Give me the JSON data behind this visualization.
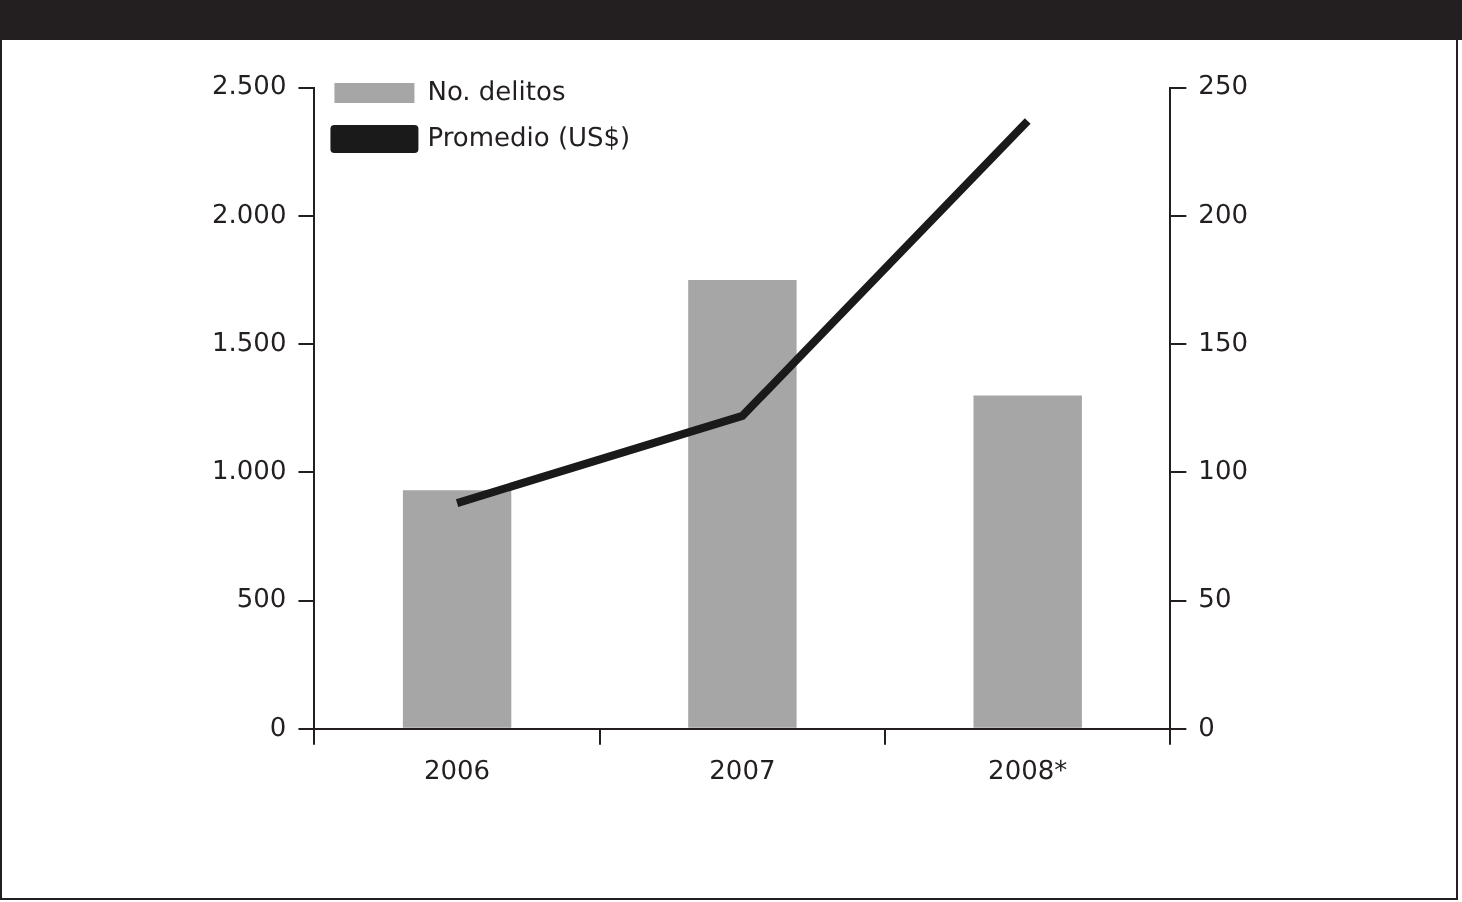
{
  "chart_data": {
    "type": "bar",
    "categories": [
      "2006",
      "2007",
      "2008*"
    ],
    "series": [
      {
        "name": "No. delitos",
        "color": "#a6a6a6",
        "values": [
          930,
          1750,
          1300
        ]
      },
      {
        "name": "Promedio (US$)",
        "type": "line",
        "axis": "y2",
        "color": "#1a1a1a",
        "values": [
          88,
          122,
          237
        ]
      }
    ],
    "ylim": [
      0,
      2500
    ],
    "yticks": [
      0,
      500,
      {
        "value": 1000,
        "label": "1.000"
      },
      {
        "value": 1500,
        "label": "1.500"
      },
      {
        "value": 2000,
        "label": "2.000"
      },
      {
        "value": 2500,
        "label": "2.500"
      }
    ],
    "y2lim": [
      0,
      250
    ],
    "y2ticks": [
      0,
      50,
      100,
      150,
      200,
      250
    ],
    "grid": false,
    "legend": "top left",
    "marker": "none",
    "line_style": "solid"
  }
}
